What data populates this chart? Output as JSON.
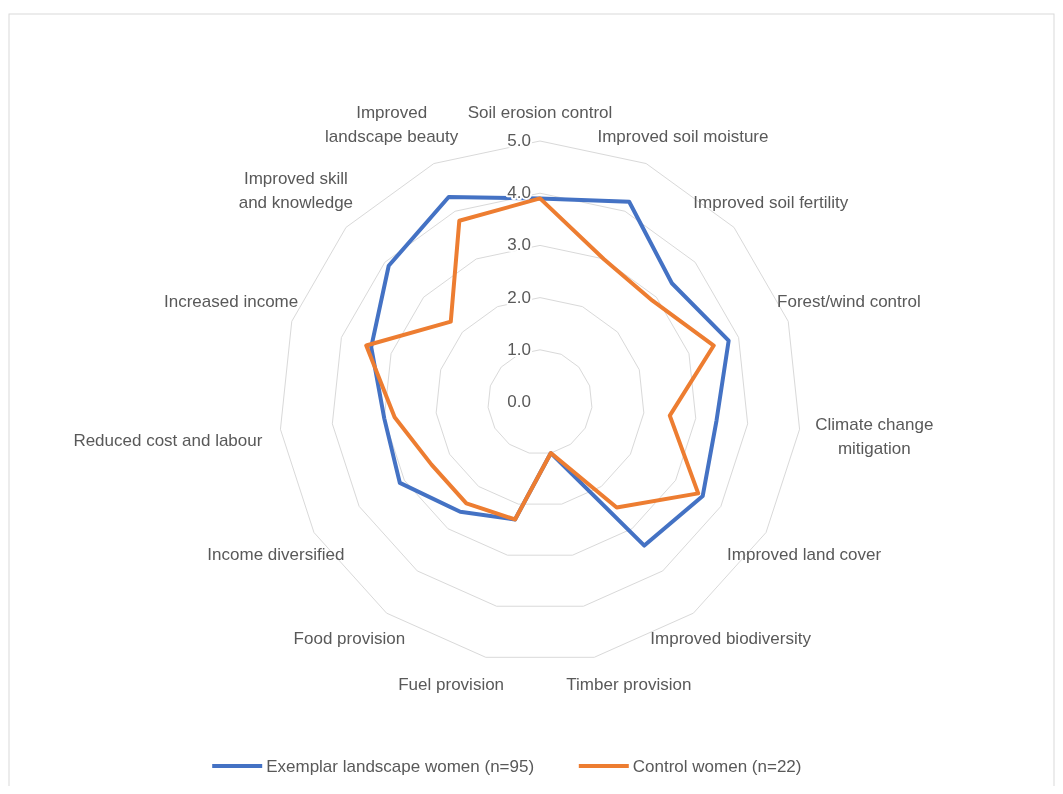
{
  "chart_data": {
    "type": "radar",
    "categories": [
      "Soil erosion control",
      "Improved soil moisture",
      "Improved soil fertility",
      "Forest/wind control",
      "Climate change mitigation",
      "Improved land cover",
      "Improved biodiversity",
      "Timber provision",
      "Fuel provision",
      "Food provision",
      "Income diversified",
      "Reduced cost and labour",
      "Increased income",
      "Improved skill and knowledge",
      "Improved landscape beauty"
    ],
    "series": [
      {
        "name": "Exemplar landscape women (n=95)",
        "color": "#4472c4",
        "values": [
          3.9,
          4.2,
          3.4,
          3.8,
          3.4,
          3.6,
          3.4,
          1.0,
          2.3,
          2.6,
          3.1,
          3.0,
          3.4,
          3.9,
          4.3
        ]
      },
      {
        "name": "Control women (n=22)",
        "color": "#ed7d31",
        "values": [
          3.9,
          3.0,
          2.9,
          3.5,
          2.5,
          3.5,
          2.5,
          1.0,
          2.3,
          2.4,
          2.4,
          2.8,
          3.5,
          2.3,
          3.8
        ]
      }
    ],
    "ylim": [
      0,
      5
    ],
    "yticks": [
      {
        "value": 0,
        "label": "0.0"
      },
      {
        "value": 1,
        "label": "1.0"
      },
      {
        "value": 2,
        "label": "2.0"
      },
      {
        "value": 3,
        "label": "3.0"
      },
      {
        "value": 4,
        "label": "4.0"
      },
      {
        "value": 5,
        "label": "5.0"
      }
    ],
    "grid": true,
    "legend": "bottom",
    "marker": "none",
    "line_style": "solid"
  }
}
